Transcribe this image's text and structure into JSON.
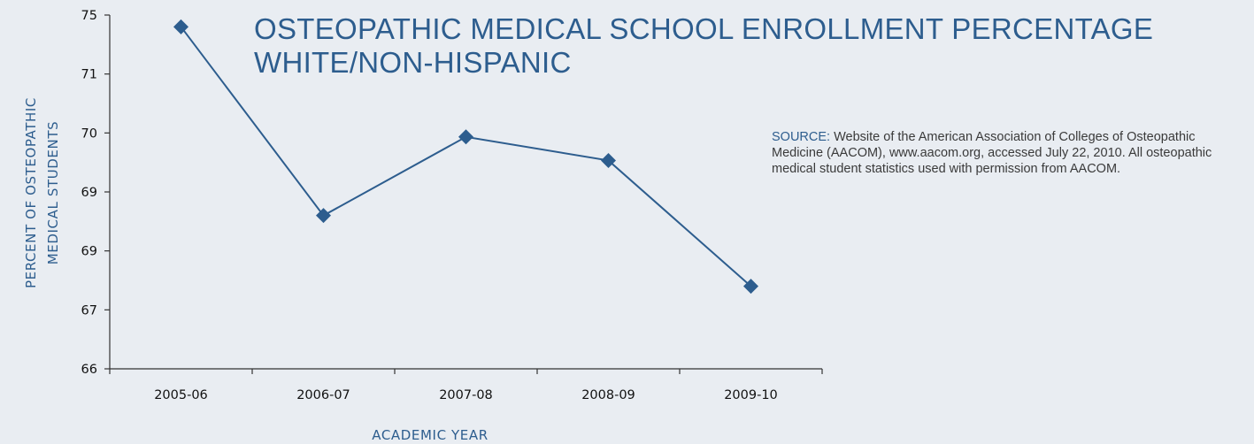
{
  "chart_data": {
    "type": "line",
    "title_lines": [
      "OSTEOPATHIC MEDICAL SCHOOL ENROLLMENT PERCENTAGE",
      "WHITE/NON-HISPANIC"
    ],
    "xlabel": "ACADEMIC YEAR",
    "ylabel_lines": [
      "PERCENT OF OSTEOPATHIC",
      "MEDICAL STUDENTS"
    ],
    "categories": [
      "2005-06",
      "2006-07",
      "2007-08",
      "2008-09",
      "2009-10"
    ],
    "yticks": [
      "75",
      "71",
      "70",
      "69",
      "69",
      "67",
      "66"
    ],
    "ylim": [
      66,
      75
    ],
    "series": [
      {
        "values": [
          74.7,
          69.9,
          71.9,
          71.3,
          68.1
        ]
      }
    ],
    "grid": false,
    "colors": {
      "line": "#2d5d8e",
      "marker": "#2d5d8e",
      "axis": "#333333"
    }
  },
  "source": {
    "label": "SOURCE:",
    "text": "Website of the American Association of Colleges of Osteopathic Medicine (AACOM), www.aacom.org, accessed July 22, 2010. All osteopathic medical student statistics used with permission from AACOM."
  }
}
